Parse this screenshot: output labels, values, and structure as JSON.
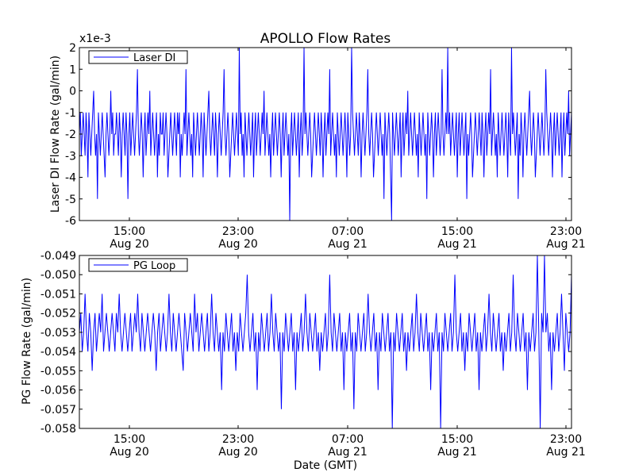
{
  "title": "APOLLO Flow Rates",
  "xlabel": "Date (GMT)",
  "chart_data": [
    {
      "type": "line",
      "title": "APOLLO Flow Rates",
      "ylabel": "Laser DI Flow Rate (gal/min)",
      "xlabel": "",
      "scale_label": "x1e-3",
      "ylim": [
        -6,
        2
      ],
      "yticks": [
        2,
        1,
        0,
        -1,
        -2,
        -3,
        -4,
        -5,
        -6
      ],
      "ytick_labels": [
        "2",
        "1",
        "0",
        "-1",
        "-2",
        "-3",
        "-4",
        "-5",
        "-6"
      ],
      "xlim": [
        "Aug 20 11:00",
        "Aug 21 23:50"
      ],
      "x_ticks": [
        {
          "time": "15:00",
          "date": "Aug 20"
        },
        {
          "time": "23:00",
          "date": "Aug 20"
        },
        {
          "time": "07:00",
          "date": "Aug 21"
        },
        {
          "time": "15:00",
          "date": "Aug 21"
        },
        {
          "time": "23:00",
          "date": "Aug 21"
        }
      ],
      "legend_placement": "top-left",
      "color": "#0000ff",
      "series": [
        {
          "name": "Laser DI",
          "values": [
            -2,
            -1,
            -3,
            -2,
            -1,
            -2,
            -3,
            -1,
            -2,
            -4,
            -1,
            -2,
            -3,
            -2,
            -1,
            0,
            -2,
            -3,
            -2,
            -5,
            -1,
            -2,
            -3,
            -2,
            -1,
            -2,
            -3,
            -4,
            -2,
            -1,
            -2,
            -3,
            -2,
            0,
            -2,
            -1,
            -3,
            -2,
            -2,
            -1,
            -2,
            -3,
            -1,
            -2,
            -4,
            -2,
            -1,
            -2,
            -3,
            -1,
            -2,
            -5,
            -2,
            -1,
            -3,
            -2,
            -1,
            -2,
            -3,
            -2,
            -1,
            1,
            -2,
            -3,
            -2,
            -1,
            -2,
            -4,
            -2,
            -1,
            -3,
            -2,
            -1,
            -2,
            0,
            -3,
            -2,
            -1,
            -2,
            -3,
            -2,
            -1,
            -4,
            -2,
            -3,
            -1,
            -2,
            -2,
            -1,
            -3,
            -2,
            -1,
            -2,
            -4,
            -3,
            -2,
            -1,
            -2,
            -3,
            -2,
            -1,
            -2,
            -3,
            -1,
            -2,
            -1,
            -4,
            -2,
            -3,
            -2,
            -1,
            -2,
            1,
            -3,
            -2,
            -1,
            -2,
            -3,
            -2,
            -4,
            -1,
            -2,
            -3,
            -2,
            -1,
            -2,
            -3,
            -2,
            -1,
            -2,
            -4,
            -1,
            -2,
            -3,
            -2,
            -1,
            0,
            -2,
            -3,
            -2,
            -1,
            -2,
            -3,
            -1,
            -2,
            -4,
            -2,
            -1,
            -2,
            -3,
            -2,
            -1,
            1,
            -2,
            -3,
            -2,
            -1,
            -2,
            -4,
            -3,
            -2,
            -1,
            -2,
            -3,
            -2,
            -1,
            -2,
            -3,
            2,
            -2,
            -1,
            -3,
            -2,
            -4,
            -1,
            -2,
            -3,
            -2,
            -1,
            -2,
            -3,
            -2,
            -1,
            -4,
            -2,
            -1,
            -3,
            -2,
            -1,
            -2,
            -3,
            -2,
            -1,
            -2,
            0,
            -3,
            -2,
            -1,
            -2,
            -3,
            -2,
            -4,
            -2,
            -1,
            -3,
            -2,
            -1,
            -2,
            -3,
            -2,
            -1,
            -2,
            -4,
            -2,
            -1,
            -3,
            -2,
            -1,
            -2,
            -3,
            -2,
            -6,
            -2,
            -1,
            -3,
            -2,
            -1,
            -2,
            -3,
            -2,
            -1,
            -4,
            -2,
            -1,
            -3,
            -2,
            2,
            -2,
            -1,
            -2,
            -3,
            -2,
            -1,
            -2,
            -4,
            -3,
            -2,
            -1,
            -2,
            -3,
            -2,
            -1,
            -2,
            -3,
            -1,
            -2,
            -4,
            -2,
            -1,
            -3,
            -2,
            -1,
            -2,
            1,
            -3,
            -2,
            -1,
            -2,
            -3,
            -2,
            -4,
            -1,
            -2,
            -3,
            -2,
            -1,
            -2,
            -3,
            -2,
            -1,
            -2,
            -4,
            -1,
            -2,
            -3,
            -2,
            2,
            -1,
            -2,
            -3,
            -2,
            -1,
            -2,
            -3,
            -1,
            -2,
            -4,
            -2,
            -1,
            -2,
            -3,
            -2,
            -1,
            1,
            -2,
            -3,
            -2,
            -1,
            -2,
            -4,
            -3,
            -2,
            -1,
            -2,
            -3,
            -2,
            -1,
            -2,
            -3,
            -2,
            -5,
            -1,
            -2,
            -3,
            -2,
            -1,
            -2,
            -4,
            -6,
            -1,
            -2,
            -3,
            -2,
            -1,
            -2,
            -3,
            -2,
            -1,
            -4,
            -2,
            -1,
            -3,
            -2,
            -1,
            -2,
            0,
            -3,
            -2,
            -1,
            -2,
            -3,
            -2,
            -1,
            -2,
            -3,
            -2,
            -4,
            -1,
            -2,
            -3,
            -2,
            -1,
            -2,
            -3,
            -2,
            -5,
            -1,
            -2,
            -3,
            -2,
            -1,
            -2,
            -4,
            -2,
            -1,
            -3,
            -2,
            -1,
            -2,
            -3,
            -2,
            1,
            -2,
            -3,
            -2,
            -1,
            -2,
            2,
            -2,
            -1,
            -3,
            -2,
            -1,
            -2,
            -3,
            -2,
            -1,
            -4,
            -2,
            -1,
            -3,
            -2,
            -1,
            -2,
            -3,
            -2,
            -1,
            -5,
            -2,
            -3,
            -2,
            -1,
            -2,
            -4,
            -3,
            -2,
            -1,
            -2,
            -3,
            -2,
            -1,
            -2,
            -3,
            -1,
            -2,
            -4,
            -2,
            -1,
            -3,
            -2,
            -1,
            -2,
            1,
            -3,
            -2,
            -1,
            -2,
            -3,
            -2,
            -4,
            -1,
            -2,
            -3,
            -2,
            -1,
            -2,
            -3,
            -2,
            -1,
            -2,
            -4,
            -1,
            -2,
            -3,
            2,
            -2,
            -1,
            -2,
            -3,
            -2,
            -1,
            -5,
            -2,
            -3,
            -1,
            -2,
            -4,
            -2,
            -1,
            -2,
            -3,
            -2,
            -1,
            0,
            -2,
            -3,
            -2,
            -1,
            -2,
            -4,
            -3,
            -2,
            -1,
            -2,
            -3,
            -2,
            -1,
            -2,
            -3,
            -2,
            1,
            -1,
            -2,
            -3,
            -2,
            -1,
            -2,
            -4,
            -2,
            -1,
            -3,
            -2,
            -1,
            -2,
            -3,
            -2,
            -1,
            -4,
            -2,
            -1,
            -3,
            -2,
            -1,
            -2,
            0,
            -3,
            -2,
            -1
          ]
        }
      ]
    },
    {
      "type": "line",
      "ylabel": "PG Flow Rate (gal/min)",
      "xlabel": "Date (GMT)",
      "ylim": [
        -0.058,
        -0.049
      ],
      "yticks": [
        -0.049,
        -0.05,
        -0.051,
        -0.052,
        -0.053,
        -0.054,
        -0.055,
        -0.056,
        -0.057,
        -0.058
      ],
      "ytick_labels": [
        "-0.049",
        "-0.050",
        "-0.051",
        "-0.052",
        "-0.053",
        "-0.054",
        "-0.055",
        "-0.056",
        "-0.057",
        "-0.058"
      ],
      "xlim": [
        "Aug 20 11:00",
        "Aug 21 23:50"
      ],
      "x_ticks": [
        {
          "time": "15:00",
          "date": "Aug 20"
        },
        {
          "time": "23:00",
          "date": "Aug 20"
        },
        {
          "time": "07:00",
          "date": "Aug 21"
        },
        {
          "time": "15:00",
          "date": "Aug 21"
        },
        {
          "time": "23:00",
          "date": "Aug 21"
        }
      ],
      "legend_placement": "top-left",
      "color": "#0000ff",
      "series": [
        {
          "name": "PG Loop",
          "values": [
            -0.053,
            -0.052,
            -0.054,
            -0.053,
            -0.051,
            -0.053,
            -0.054,
            -0.052,
            -0.053,
            -0.055,
            -0.053,
            -0.052,
            -0.054,
            -0.053,
            -0.052,
            -0.053,
            -0.051,
            -0.054,
            -0.053,
            -0.052,
            -0.053,
            -0.054,
            -0.053,
            -0.052,
            -0.053,
            -0.054,
            -0.052,
            -0.053,
            -0.051,
            -0.053,
            -0.054,
            -0.053,
            -0.052,
            -0.053,
            -0.054,
            -0.053,
            -0.052,
            -0.054,
            -0.053,
            -0.052,
            -0.053,
            -0.051,
            -0.053,
            -0.054,
            -0.052,
            -0.053,
            -0.054,
            -0.053,
            -0.052,
            -0.053,
            -0.054,
            -0.053,
            -0.052,
            -0.053,
            -0.055,
            -0.053,
            -0.052,
            -0.054,
            -0.053,
            -0.052,
            -0.053,
            -0.054,
            -0.053,
            -0.051,
            -0.053,
            -0.054,
            -0.052,
            -0.053,
            -0.054,
            -0.053,
            -0.052,
            -0.053,
            -0.054,
            -0.055,
            -0.052,
            -0.053,
            -0.054,
            -0.053,
            -0.052,
            -0.053,
            -0.054,
            -0.051,
            -0.053,
            -0.052,
            -0.054,
            -0.053,
            -0.052,
            -0.053,
            -0.054,
            -0.053,
            -0.052,
            -0.054,
            -0.053,
            -0.051,
            -0.053,
            -0.054,
            -0.052,
            -0.053,
            -0.054,
            -0.053,
            -0.056,
            -0.053,
            -0.054,
            -0.052,
            -0.053,
            -0.054,
            -0.053,
            -0.052,
            -0.054,
            -0.053,
            -0.055,
            -0.053,
            -0.054,
            -0.052,
            -0.053,
            -0.054,
            -0.053,
            -0.052,
            -0.05,
            -0.053,
            -0.054,
            -0.053,
            -0.052,
            -0.054,
            -0.053,
            -0.056,
            -0.053,
            -0.054,
            -0.052,
            -0.053,
            -0.054,
            -0.053,
            -0.052,
            -0.054,
            -0.053,
            -0.051,
            -0.053,
            -0.054,
            -0.052,
            -0.053,
            -0.054,
            -0.053,
            -0.057,
            -0.053,
            -0.054,
            -0.052,
            -0.053,
            -0.054,
            -0.053,
            -0.052,
            -0.054,
            -0.053,
            -0.056,
            -0.053,
            -0.054,
            -0.053,
            -0.052,
            -0.054,
            -0.053,
            -0.051,
            -0.053,
            -0.054,
            -0.052,
            -0.053,
            -0.054,
            -0.053,
            -0.052,
            -0.054,
            -0.053,
            -0.055,
            -0.053,
            -0.054,
            -0.053,
            -0.052,
            -0.054,
            -0.053,
            -0.05,
            -0.053,
            -0.054,
            -0.052,
            -0.053,
            -0.054,
            -0.053,
            -0.052,
            -0.054,
            -0.053,
            -0.056,
            -0.053,
            -0.054,
            -0.053,
            -0.052,
            -0.054,
            -0.053,
            -0.057,
            -0.053,
            -0.054,
            -0.052,
            -0.053,
            -0.054,
            -0.053,
            -0.052,
            -0.054,
            -0.053,
            -0.051,
            -0.053,
            -0.054,
            -0.053,
            -0.052,
            -0.054,
            -0.053,
            -0.056,
            -0.053,
            -0.054,
            -0.052,
            -0.053,
            -0.054,
            -0.053,
            -0.052,
            -0.054,
            -0.053,
            -0.058,
            -0.053,
            -0.054,
            -0.052,
            -0.053,
            -0.054,
            -0.053,
            -0.052,
            -0.054,
            -0.053,
            -0.055,
            -0.053,
            -0.054,
            -0.053,
            -0.052,
            -0.054,
            -0.053,
            -0.051,
            -0.053,
            -0.054,
            -0.052,
            -0.053,
            -0.054,
            -0.053,
            -0.052,
            -0.054,
            -0.053,
            -0.056,
            -0.053,
            -0.054,
            -0.053,
            -0.052,
            -0.054,
            -0.053,
            -0.058,
            -0.053,
            -0.054,
            -0.052,
            -0.053,
            -0.054,
            -0.053,
            -0.052,
            -0.054,
            -0.053,
            -0.05,
            -0.053,
            -0.054,
            -0.053,
            -0.052,
            -0.054,
            -0.053,
            -0.055,
            -0.053,
            -0.054,
            -0.052,
            -0.053,
            -0.054,
            -0.053,
            -0.052,
            -0.054,
            -0.053,
            -0.056,
            -0.053,
            -0.054,
            -0.053,
            -0.052,
            -0.054,
            -0.053,
            -0.051,
            -0.053,
            -0.054,
            -0.052,
            -0.053,
            -0.054,
            -0.053,
            -0.052,
            -0.054,
            -0.053,
            -0.055,
            -0.053,
            -0.054,
            -0.053,
            -0.052,
            -0.054,
            -0.053,
            -0.05,
            -0.053,
            -0.054,
            -0.052,
            -0.053,
            -0.054,
            -0.053,
            -0.052,
            -0.054,
            -0.053,
            -0.056,
            -0.053,
            -0.054,
            -0.053,
            -0.052,
            -0.054,
            -0.053,
            -0.049,
            -0.053,
            -0.058,
            -0.052,
            -0.053,
            -0.049,
            -0.053,
            -0.052,
            -0.054,
            -0.053,
            -0.056,
            -0.053,
            -0.054,
            -0.053,
            -0.052,
            -0.054,
            -0.053,
            -0.051,
            -0.053,
            -0.055,
            -0.052,
            -0.053,
            -0.054,
            -0.053,
            -0.05
          ]
        }
      ]
    }
  ]
}
